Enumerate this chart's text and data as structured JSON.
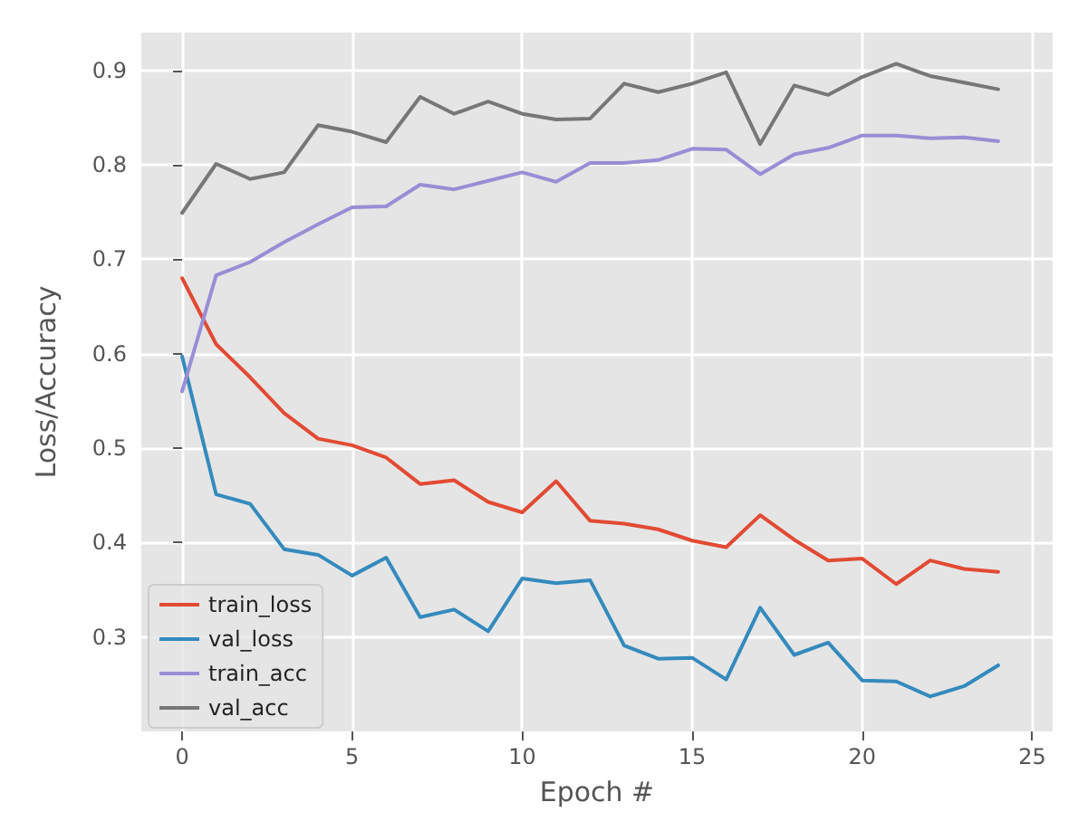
{
  "chart_data": {
    "type": "line",
    "xlabel": "Epoch #",
    "ylabel": "Loss/Accuracy",
    "x": [
      0,
      1,
      2,
      3,
      4,
      5,
      6,
      7,
      8,
      9,
      10,
      11,
      12,
      13,
      14,
      15,
      16,
      17,
      18,
      19,
      20,
      21,
      22,
      23,
      24
    ],
    "series": [
      {
        "name": "train_loss",
        "color": "#e24a33",
        "values": [
          0.68,
          0.61,
          0.575,
          0.537,
          0.51,
          0.503,
          0.49,
          0.462,
          0.466,
          0.443,
          0.432,
          0.465,
          0.423,
          0.42,
          0.414,
          0.402,
          0.395,
          0.429,
          0.403,
          0.381,
          0.383,
          0.356,
          0.381,
          0.372,
          0.369
        ]
      },
      {
        "name": "val_loss",
        "color": "#348abd",
        "values": [
          0.597,
          0.451,
          0.441,
          0.393,
          0.387,
          0.365,
          0.384,
          0.321,
          0.329,
          0.306,
          0.362,
          0.357,
          0.36,
          0.291,
          0.277,
          0.278,
          0.255,
          0.331,
          0.281,
          0.294,
          0.254,
          0.253,
          0.237,
          0.248,
          0.27
        ]
      },
      {
        "name": "train_acc",
        "color": "#988ed5",
        "values": [
          0.56,
          0.683,
          0.697,
          0.718,
          0.737,
          0.755,
          0.756,
          0.779,
          0.774,
          0.783,
          0.792,
          0.782,
          0.802,
          0.802,
          0.805,
          0.817,
          0.816,
          0.79,
          0.811,
          0.818,
          0.831,
          0.831,
          0.828,
          0.829,
          0.825
        ]
      },
      {
        "name": "val_acc",
        "color": "#777777",
        "values": [
          0.749,
          0.801,
          0.785,
          0.792,
          0.842,
          0.835,
          0.824,
          0.872,
          0.854,
          0.867,
          0.854,
          0.848,
          0.849,
          0.886,
          0.877,
          0.886,
          0.898,
          0.822,
          0.884,
          0.874,
          0.893,
          0.907,
          0.894,
          0.887,
          0.88
        ]
      }
    ],
    "xlim": [
      -1.2,
      25.6
    ],
    "xticks": [
      0,
      5,
      10,
      15,
      20,
      25
    ],
    "ylim": [
      0.2,
      0.94
    ],
    "yticks": [
      0.3,
      0.4,
      0.5,
      0.6,
      0.7,
      0.8,
      0.9
    ],
    "grid": true,
    "legend": "bottom left",
    "line_style": "solid",
    "marker": "none"
  }
}
